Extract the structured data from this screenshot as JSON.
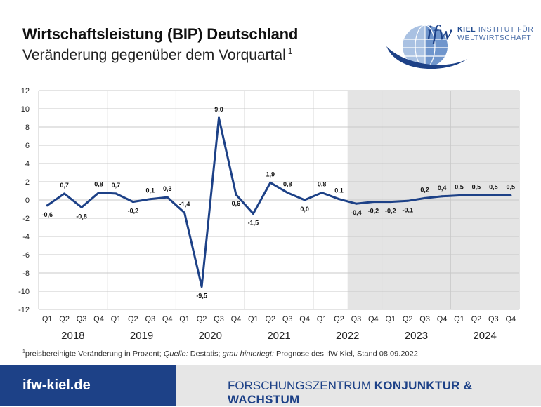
{
  "header": {
    "title": "Wirtschaftsleistung (BIP) Deutschland",
    "subtitle": "Veränderung gegenüber dem Vorquartal",
    "subtitle_note": "1"
  },
  "logo": {
    "mark": "ifw",
    "line1_strong": "KIEL",
    "line1_rest": " INSTITUT FÜR",
    "line2": "WELTWIRTSCHAFT",
    "globe_icon": "globe-icon",
    "accent": "#1d4187"
  },
  "chart_data": {
    "type": "line",
    "title": "Wirtschaftsleistung (BIP) Deutschland",
    "subtitle": "Veränderung gegenüber dem Vorquartal",
    "categories": [
      "Q1",
      "Q2",
      "Q3",
      "Q4",
      "Q1",
      "Q2",
      "Q3",
      "Q4",
      "Q1",
      "Q2",
      "Q3",
      "Q4",
      "Q1",
      "Q2",
      "Q3",
      "Q4",
      "Q1",
      "Q2",
      "Q3",
      "Q4",
      "Q1",
      "Q2",
      "Q3",
      "Q4",
      "Q1",
      "Q2",
      "Q3",
      "Q4"
    ],
    "years": [
      "2018",
      "2019",
      "2020",
      "2021",
      "2022",
      "2023",
      "2024"
    ],
    "series": [
      {
        "values": [
          -0.6,
          0.7,
          -0.8,
          0.8,
          0.7,
          -0.2,
          0.1,
          0.3,
          -1.4,
          -9.5,
          9.0,
          0.6,
          -1.5,
          1.9,
          0.8,
          0.0,
          0.8,
          0.1,
          -0.4,
          -0.2,
          -0.2,
          -0.1,
          0.2,
          0.4,
          0.5,
          0.5,
          0.5,
          0.5
        ]
      }
    ],
    "value_labels": [
      "-0,6",
      "0,7",
      "-0,8",
      "0,8",
      "0,7",
      "-0,2",
      "0,1",
      "0,3",
      "-1,4",
      "-9,5",
      "9,0",
      "0,6",
      "-1,5",
      "1,9",
      "0,8",
      "0,0",
      "0,8",
      "0,1",
      "-0,4",
      "-0,2",
      "-0,2",
      "-0,1",
      "0,2",
      "0,4",
      "0,5",
      "0,5",
      "0,5",
      "0,5"
    ],
    "label_position": [
      "below",
      "above",
      "below",
      "above",
      "above",
      "below",
      "above",
      "above",
      "above",
      "below",
      "above",
      "below",
      "below",
      "above",
      "above",
      "below",
      "above",
      "above",
      "below",
      "below",
      "below",
      "below",
      "above",
      "above",
      "above",
      "above",
      "above",
      "above"
    ],
    "ylim": [
      -12,
      12
    ],
    "yticks": [
      "12",
      "10",
      "8",
      "6",
      "4",
      "2",
      "0",
      "-2",
      "-4",
      "-6",
      "-8",
      "-10",
      "-12"
    ],
    "forecast_start_index": 18,
    "grid": true,
    "line_color": "#1d4187",
    "forecast_shade": "#e4e4e4"
  },
  "footnote": {
    "mark": "1",
    "part1": "preisbereinigte Veränderung in Prozent; ",
    "quelle_label": "Quelle:",
    "quelle_value": " Destatis; ",
    "shaded_label": "grau hinterlegt:",
    "shaded_value": " Prognose des IfW Kiel, Stand 08.09.2022"
  },
  "footer": {
    "site": "ifw-kiel.de",
    "center_light": "FORSCHUNGSZENTRUM ",
    "center_bold": "KONJUNKTUR & WACHSTUM"
  }
}
